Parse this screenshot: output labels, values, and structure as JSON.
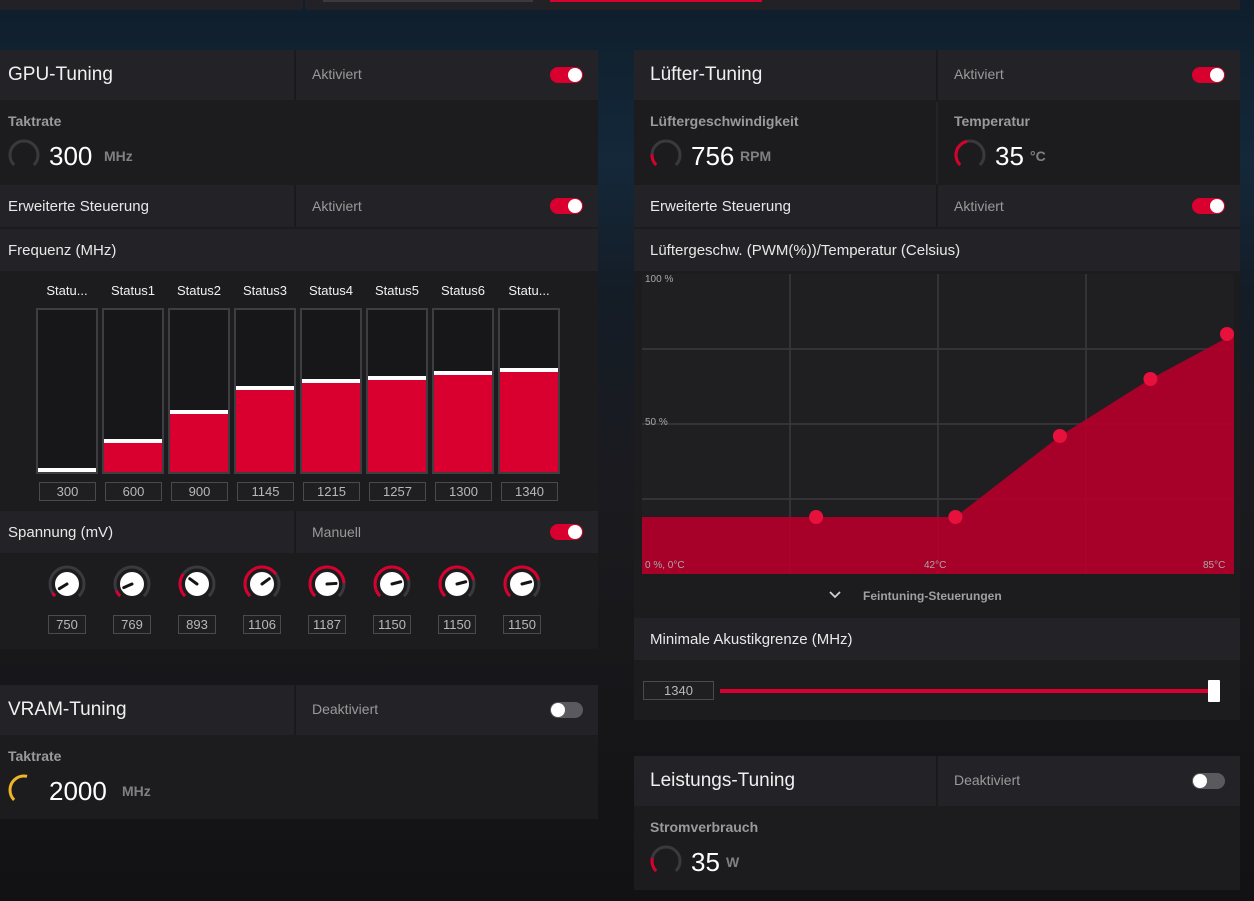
{
  "colors": {
    "accent": "#d9002f",
    "vram_gauge": "#f0b429",
    "panel": "#1c1c1f",
    "row": "#232327"
  },
  "gpu": {
    "title": "GPU-Tuning",
    "state": "Aktiviert",
    "enabled": true,
    "clock_label": "Taktrate",
    "clock_value": "300",
    "clock_unit": "MHz",
    "advanced_label": "Erweiterte Steuerung",
    "advanced_state": "Aktiviert",
    "advanced_enabled": true,
    "freq_label": "Frequenz (MHz)",
    "states": [
      {
        "name": "Statu...",
        "freq": "300",
        "level": 0.0
      },
      {
        "name": "Status1",
        "freq": "600",
        "level": 0.19
      },
      {
        "name": "Status2",
        "freq": "900",
        "level": 0.37
      },
      {
        "name": "Status3",
        "freq": "1145",
        "level": 0.52
      },
      {
        "name": "Status4",
        "freq": "1215",
        "level": 0.56
      },
      {
        "name": "Status5",
        "freq": "1257",
        "level": 0.58
      },
      {
        "name": "Status6",
        "freq": "1300",
        "level": 0.61
      },
      {
        "name": "Statu...",
        "freq": "1340",
        "level": 0.63
      }
    ],
    "voltage_label": "Spannung (mV)",
    "voltage_mode": "Manuell",
    "voltage_enabled": true,
    "voltages": [
      {
        "value": "750",
        "level": 0.05
      },
      {
        "value": "769",
        "level": 0.08
      },
      {
        "value": "893",
        "level": 0.3
      },
      {
        "value": "1106",
        "level": 0.7
      },
      {
        "value": "1187",
        "level": 0.82
      },
      {
        "value": "1150",
        "level": 0.78
      },
      {
        "value": "1150",
        "level": 0.78
      },
      {
        "value": "1150",
        "level": 0.78
      }
    ]
  },
  "vram": {
    "title": "VRAM-Tuning",
    "state": "Deaktiviert",
    "enabled": false,
    "clock_label": "Taktrate",
    "clock_value": "2000",
    "clock_unit": "MHz"
  },
  "fan": {
    "title": "Lüfter-Tuning",
    "state": "Aktiviert",
    "enabled": true,
    "speed_label": "Lüftergeschwindigkeit",
    "speed_value": "756",
    "speed_unit": "RPM",
    "temp_label": "Temperatur",
    "temp_value": "35",
    "temp_unit": "°C",
    "advanced_label": "Erweiterte Steuerung",
    "advanced_state": "Aktiviert",
    "advanced_enabled": true,
    "curve_label": "Lüftergeschw. (PWM(%))/Temperatur (Celsius)",
    "curve_y_top": "100 %",
    "curve_y_mid": "50 %",
    "curve_origin": "0 %, 0°C",
    "curve_x_mid": "42°C",
    "curve_x_max": "85°C",
    "fine_tuning_label": "Feintuning-Steuerungen",
    "min_acoustic_label": "Minimale Akustikgrenze (MHz)",
    "min_acoustic_value": "1340",
    "min_acoustic_level": 1.0
  },
  "chart_data": {
    "type": "area",
    "title": "Lüftergeschw. (PWM(%))/Temperatur (Celsius)",
    "xlabel": "",
    "ylabel": "",
    "xlim": [
      0,
      85
    ],
    "ylim": [
      0,
      100
    ],
    "x_ticks": [
      "0 %, 0°C",
      "42°C",
      "85°C"
    ],
    "y_ticks": [
      "0 %",
      "50 %",
      "100 %"
    ],
    "series": [
      {
        "x": [
          0,
          25,
          45,
          60,
          73,
          85
        ],
        "y": [
          19,
          19,
          19,
          46,
          65,
          80
        ],
        "points": [
          [
            25,
            19
          ],
          [
            45,
            19
          ],
          [
            60,
            46
          ],
          [
            73,
            65
          ],
          [
            85,
            80
          ]
        ]
      }
    ]
  },
  "power": {
    "title": "Leistungs-Tuning",
    "state": "Deaktiviert",
    "enabled": false,
    "label": "Stromverbrauch",
    "value": "35",
    "unit": "W"
  }
}
